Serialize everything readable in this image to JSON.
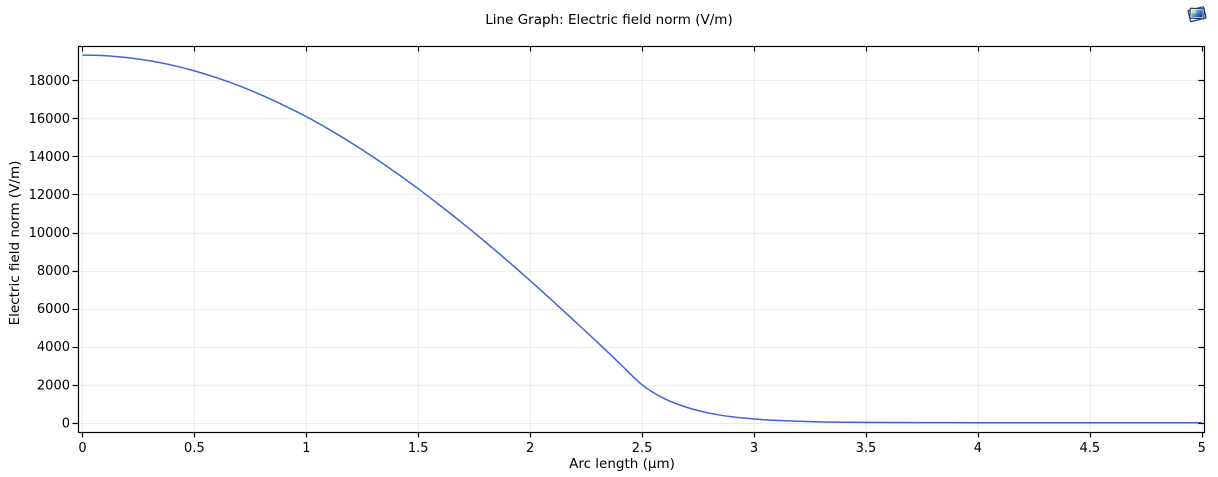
{
  "window": {
    "background": "#ffffff",
    "corner_icon": "plot-window-icon"
  },
  "chart_data": {
    "type": "line",
    "title": "Line Graph: Electric field norm (V/m)",
    "xlabel": "Arc length (µm)",
    "ylabel": "Electric field norm (V/m)",
    "xlim": [
      -0.02,
      5.01
    ],
    "ylim": [
      -480,
      19800
    ],
    "grid": true,
    "legend": "none",
    "frame": true,
    "colors": {
      "line": "#4064d8",
      "grid": "#ececec",
      "axis": "#000000",
      "text": "#000000"
    },
    "xticks": {
      "values": [
        0,
        0.5,
        1,
        1.5,
        2,
        2.5,
        3,
        3.5,
        4,
        4.5,
        5
      ],
      "labels": [
        "0",
        "0.5",
        "1",
        "1.5",
        "2",
        "2.5",
        "3",
        "3.5",
        "4",
        "4.5",
        "5"
      ]
    },
    "yticks": {
      "values": [
        0,
        2000,
        4000,
        6000,
        8000,
        10000,
        12000,
        14000,
        16000,
        18000
      ],
      "labels": [
        "0",
        "2000",
        "4000",
        "6000",
        "8000",
        "10000",
        "12000",
        "14000",
        "16000",
        "18000"
      ]
    },
    "series": [
      {
        "name": "Electric field norm",
        "x": [
          0,
          0.1,
          0.2,
          0.3,
          0.4,
          0.5,
          0.6,
          0.7,
          0.8,
          0.9,
          1.0,
          1.1,
          1.2,
          1.3,
          1.4,
          1.5,
          1.6,
          1.7,
          1.8,
          1.9,
          2.0,
          2.1,
          2.2,
          2.3,
          2.4,
          2.5,
          2.6,
          2.7,
          2.8,
          2.9,
          3.0,
          3.1,
          3.2,
          3.3,
          3.4,
          3.5,
          3.75,
          4.0,
          4.25,
          4.5,
          4.75,
          5.0
        ],
        "y": [
          19320,
          19290,
          19190,
          19020,
          18790,
          18490,
          18130,
          17710,
          17220,
          16680,
          16090,
          15430,
          14720,
          13960,
          13150,
          12300,
          11400,
          10470,
          9500,
          8500,
          7470,
          6410,
          5330,
          4240,
          3120,
          2000,
          1270,
          810,
          510,
          320,
          205,
          130,
          80,
          50,
          35,
          25,
          15,
          10,
          10,
          10,
          10,
          10
        ]
      }
    ]
  }
}
